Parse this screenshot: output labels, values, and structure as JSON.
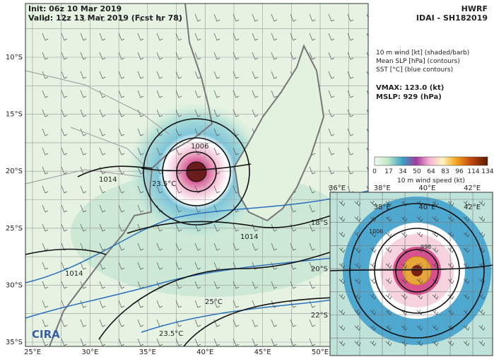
{
  "header": {
    "init": "Init:  06z 10 Mar 2019",
    "valid": "Valid: 12z 13 Mar 2019 (Fcst hr 78)",
    "model": "HWRF",
    "storm": "IDAI - SH182019"
  },
  "legend": {
    "lines": [
      "10 m wind [kt] (shaded/barb)",
      "Mean SLP [hPa] (contours)",
      "SST [°C] (blue contours)"
    ],
    "vmax": "VMAX: 123.0 (kt)",
    "mslp": "MSLP:  929 (hPa)"
  },
  "colorbar": {
    "ticks": [
      "0",
      "17",
      "34",
      "50",
      "64",
      "83",
      "96",
      "114",
      "134"
    ],
    "label": "10 m wind speed (kt)"
  },
  "map": {
    "lat_labels": [
      "10°S",
      "15°S",
      "20°S",
      "25°S",
      "30°S",
      "35°S"
    ],
    "lon_labels": [
      "25°E",
      "30°E",
      "35°E",
      "40°E",
      "45°E",
      "50°E"
    ],
    "contour_labels": [
      "1006",
      "1014",
      "1014",
      "1014",
      "23.5°C",
      "23.5°C",
      "25°C"
    ],
    "logo": "CIRA"
  },
  "inset": {
    "lon_labels": [
      "36°E",
      "38°E",
      "40°E",
      "42°E"
    ],
    "lat_labels": [
      "18°S",
      "20°S",
      "22°S"
    ],
    "contour_labels": [
      "1006",
      "998"
    ]
  }
}
